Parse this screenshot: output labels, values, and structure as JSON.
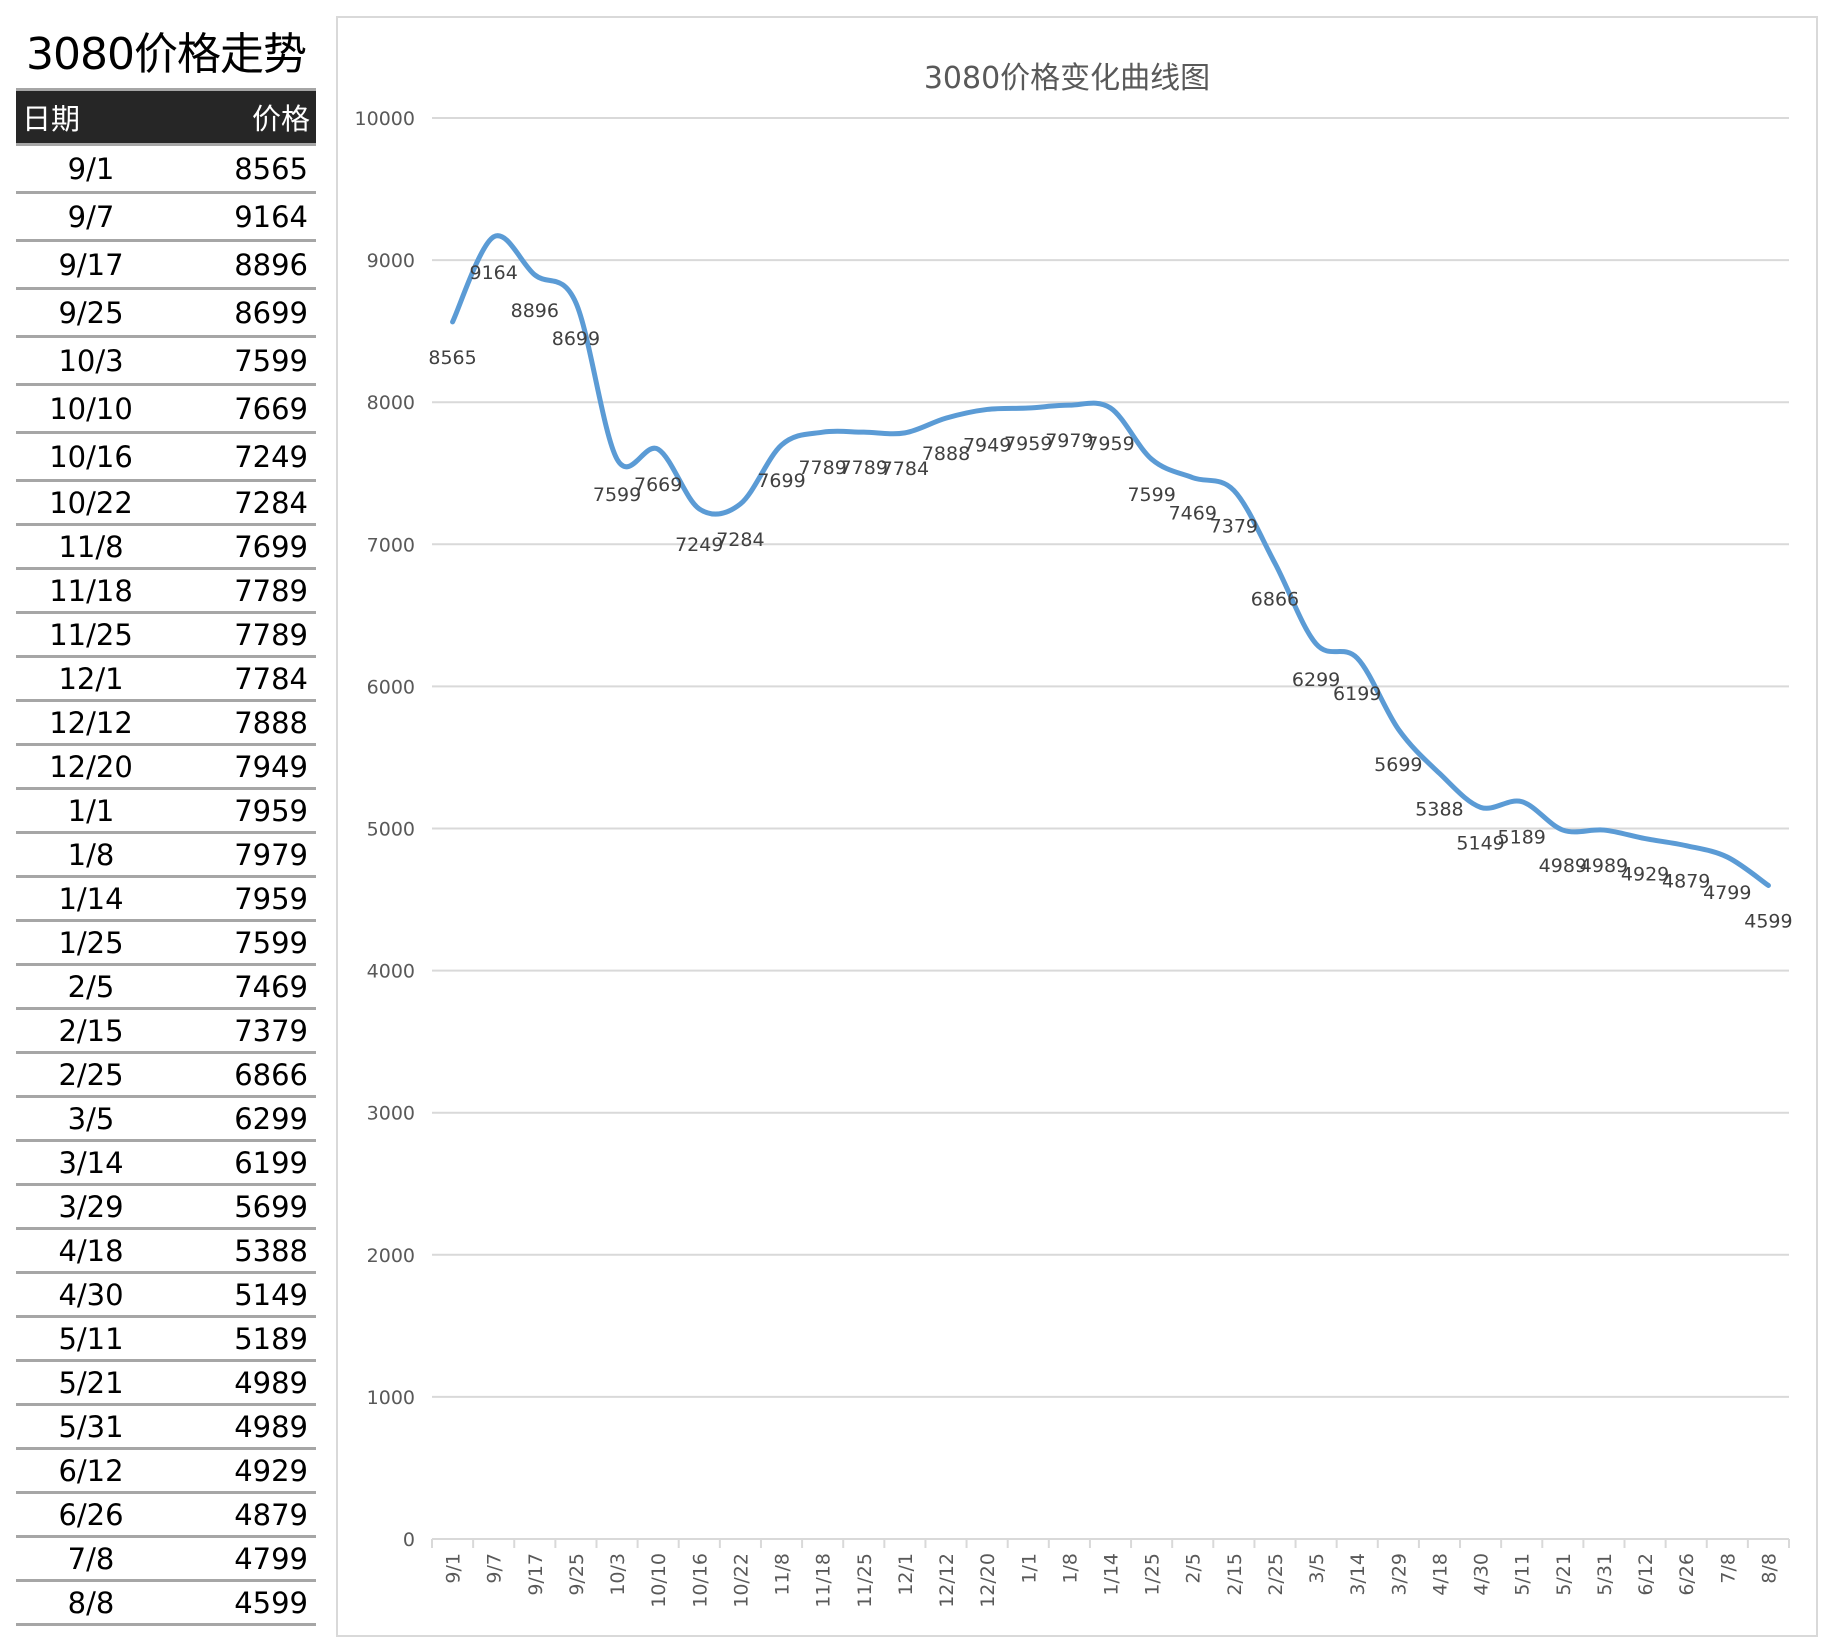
{
  "table": {
    "title": "3080价格走势",
    "headers": {
      "date": "日期",
      "price": "价格"
    },
    "rows": [
      [
        "9/1",
        "8565"
      ],
      [
        "9/7",
        "9164"
      ],
      [
        "9/17",
        "8896"
      ],
      [
        "9/25",
        "8699"
      ],
      [
        "10/3",
        "7599"
      ],
      [
        "10/10",
        "7669"
      ],
      [
        "10/16",
        "7249"
      ],
      [
        "10/22",
        "7284"
      ],
      [
        "11/8",
        "7699"
      ],
      [
        "11/18",
        "7789"
      ],
      [
        "11/25",
        "7789"
      ],
      [
        "12/1",
        "7784"
      ],
      [
        "12/12",
        "7888"
      ],
      [
        "12/20",
        "7949"
      ],
      [
        "1/1",
        "7959"
      ],
      [
        "1/8",
        "7979"
      ],
      [
        "1/14",
        "7959"
      ],
      [
        "1/25",
        "7599"
      ],
      [
        "2/5",
        "7469"
      ],
      [
        "2/15",
        "7379"
      ],
      [
        "2/25",
        "6866"
      ],
      [
        "3/5",
        "6299"
      ],
      [
        "3/14",
        "6199"
      ],
      [
        "3/29",
        "5699"
      ],
      [
        "4/18",
        "5388"
      ],
      [
        "4/30",
        "5149"
      ],
      [
        "5/11",
        "5189"
      ],
      [
        "5/21",
        "4989"
      ],
      [
        "5/31",
        "4989"
      ],
      [
        "6/12",
        "4929"
      ],
      [
        "6/26",
        "4879"
      ],
      [
        "7/8",
        "4799"
      ],
      [
        "8/8",
        "4599"
      ]
    ]
  },
  "chart_data": {
    "type": "line",
    "title": "3080价格变化曲线图",
    "xlabel": "",
    "ylabel": "",
    "smooth": true,
    "ylim": [
      0,
      10000
    ],
    "yticks": [
      0,
      1000,
      2000,
      3000,
      4000,
      5000,
      6000,
      7000,
      8000,
      9000,
      10000
    ],
    "grid": true,
    "data_labels": true,
    "line_color": "#5B9BD5",
    "categories": [
      "9/1",
      "9/7",
      "9/17",
      "9/25",
      "10/3",
      "10/10",
      "10/16",
      "10/22",
      "11/8",
      "11/18",
      "11/25",
      "12/1",
      "12/12",
      "12/20",
      "1/1",
      "1/8",
      "1/14",
      "1/25",
      "2/5",
      "2/15",
      "2/25",
      "3/5",
      "3/14",
      "3/29",
      "4/18",
      "4/30",
      "5/11",
      "5/21",
      "5/31",
      "6/12",
      "6/26",
      "7/8",
      "8/8"
    ],
    "values": [
      8565,
      9164,
      8896,
      8699,
      7599,
      7669,
      7249,
      7284,
      7699,
      7789,
      7789,
      7784,
      7888,
      7949,
      7959,
      7979,
      7959,
      7599,
      7469,
      7379,
      6866,
      6299,
      6199,
      5699,
      5388,
      5149,
      5189,
      4989,
      4989,
      4929,
      4879,
      4799,
      4599
    ]
  }
}
